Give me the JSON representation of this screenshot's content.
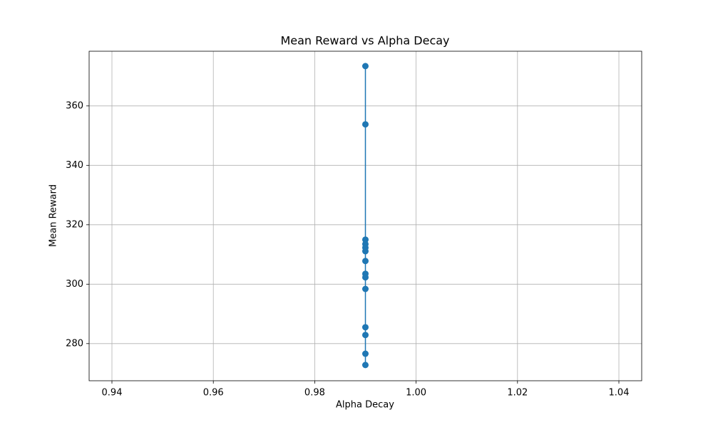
{
  "chart_data": {
    "type": "line",
    "title": "Mean Reward vs Alpha Decay",
    "x_label": "Alpha Decay",
    "y_label": "Mean Reward",
    "x": [
      0.99,
      0.99,
      0.99,
      0.99,
      0.99,
      0.99,
      0.99,
      0.99,
      0.99,
      0.99,
      0.99,
      0.99,
      0.99,
      0.99
    ],
    "series": [
      {
        "color": "#1f77b4",
        "values": [
          373.4,
          353.8,
          315.0,
          313.5,
          312.3,
          311.1,
          307.8,
          303.5,
          302.3,
          298.4,
          285.5,
          282.9,
          276.6,
          272.8
        ]
      }
    ],
    "xlim": [
      0.9355,
      1.0445
    ],
    "xticks": [
      0.94,
      0.96,
      0.98,
      {
        "value": 1,
        "label": "1.00"
      },
      1.02,
      1.04
    ],
    "ylim": [
      267.5,
      378.4
    ],
    "yticks": [
      280,
      300,
      320,
      340,
      360
    ],
    "grid": true,
    "markers": true
  }
}
